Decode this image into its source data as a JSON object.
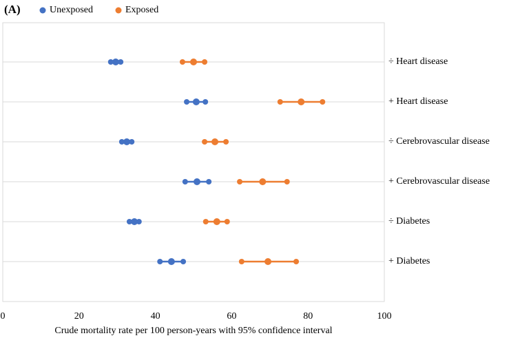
{
  "chart_data": {
    "type": "dot-interval",
    "panel_label": "(A)",
    "x_label": "Crude mortality rate per 100 person-years with 95% confidence interval",
    "categories": [
      "÷ Heart disease",
      "+ Heart disease",
      "÷ Cerebrovascular disease",
      "+ Cerebrovascular disease",
      "÷ Diabetes",
      "+ Diabetes"
    ],
    "series": [
      {
        "name": "Unexposed",
        "color": "#4472c4",
        "values": [
          29.6,
          50.7,
          32.5,
          50.9,
          34.5,
          44.2
        ],
        "lower": [
          28.3,
          48.2,
          31.2,
          47.8,
          33.2,
          41.2
        ],
        "upper": [
          30.9,
          53.1,
          33.8,
          54.0,
          35.7,
          47.3
        ]
      },
      {
        "name": "Exposed",
        "color": "#ed7d31",
        "values": [
          50.0,
          78.2,
          55.6,
          68.1,
          56.1,
          69.5
        ],
        "lower": [
          47.1,
          72.7,
          52.9,
          62.1,
          53.2,
          62.6
        ],
        "upper": [
          52.9,
          83.8,
          58.5,
          74.5,
          58.8,
          76.9
        ]
      }
    ],
    "xlim": [
      0,
      100
    ],
    "xticks": [
      0,
      20,
      40,
      60,
      80,
      100
    ]
  }
}
